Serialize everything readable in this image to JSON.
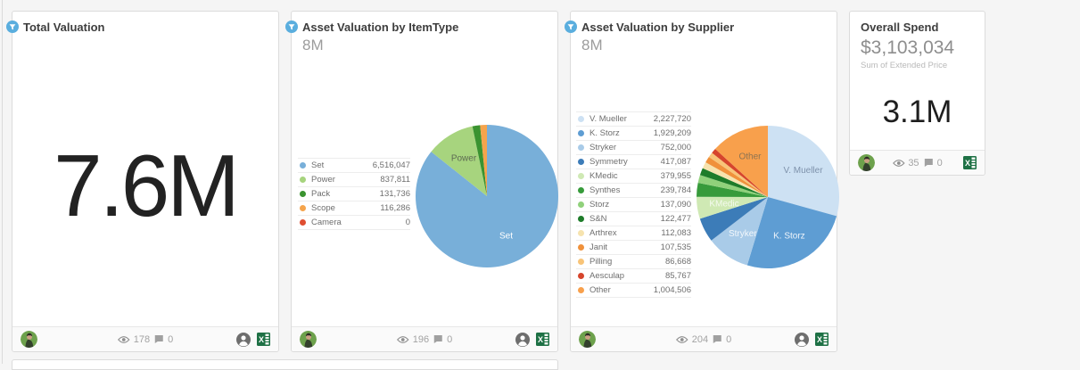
{
  "page": {
    "background_color": "#f5f5f5"
  },
  "cards": {
    "total_valuation": {
      "title": "Total Valuation",
      "value": "7.6M",
      "footer": {
        "views": "178",
        "comments": "0"
      }
    },
    "by_itemtype": {
      "footer": {
        "views": "196",
        "comments": "0"
      }
    },
    "by_supplier": {
      "footer": {
        "views": "204",
        "comments": "0"
      }
    },
    "overall_spend": {
      "title": "Overall Spend",
      "amount": "$3,103,034",
      "caption": "Sum of Extended Price",
      "value": "3.1M",
      "footer": {
        "views": "35",
        "comments": "0"
      }
    }
  },
  "chart_data": [
    {
      "type": "pie",
      "title": "Asset Valuation by ItemType",
      "total_label": "8M",
      "legend_position": "left",
      "categories": [
        "Set",
        "Power",
        "Pack",
        "Scope",
        "Camera"
      ],
      "values": [
        6516047,
        837811,
        131736,
        116286,
        0
      ],
      "colors": [
        "#78afd9",
        "#a7d47e",
        "#3a9330",
        "#f5a44c",
        "#df4e31"
      ],
      "labels_on_slices": [
        {
          "category": "Set",
          "color": "#ffffff"
        },
        {
          "category": "Power",
          "color": "#5d6b52"
        }
      ]
    },
    {
      "type": "pie",
      "title": "Asset Valuation by Supplier",
      "total_label": "8M",
      "legend_position": "left",
      "categories": [
        "V. Mueller",
        "K. Storz",
        "Stryker",
        "Symmetry",
        "KMedic",
        "Synthes",
        "Storz",
        "S&N",
        "Arthrex",
        "Janit",
        "Pilling",
        "Aesculap",
        "Other"
      ],
      "values": [
        2227720,
        1929209,
        752000,
        417087,
        379955,
        239784,
        137090,
        122477,
        112083,
        107535,
        86668,
        85767,
        1004506
      ],
      "colors": [
        "#cde1f3",
        "#5e9dd3",
        "#a9cbe8",
        "#3c7cb8",
        "#cfe9b4",
        "#379b3b",
        "#90d17b",
        "#1e7c2a",
        "#f6e3ae",
        "#f0913b",
        "#f8c478",
        "#d6452c",
        "#f8a04c"
      ],
      "labels_on_slices": [
        {
          "category": "V. Mueller",
          "color": "#7e92ab"
        },
        {
          "category": "K. Storz",
          "color": "#eef4fa"
        },
        {
          "category": "Stryker",
          "color": "#f2f7fb"
        },
        {
          "category": "KMedic",
          "color": "#f4faee"
        },
        {
          "category": "Other",
          "color": "#8d7352"
        }
      ]
    }
  ]
}
